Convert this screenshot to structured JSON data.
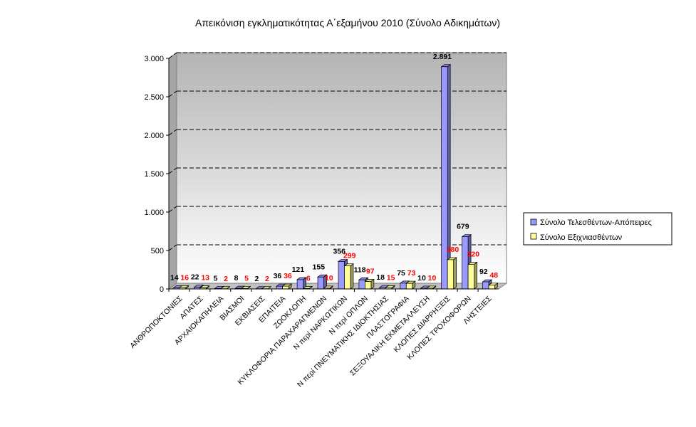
{
  "chart_data": {
    "type": "bar",
    "title": "Απεικόνιση εγκληματικότητας Α΄εξαμήνου 2010 (Σύνολο Αδικημάτων)",
    "categories": [
      "ΑΝΘΡΩΠΟΚΤΟΝΙΕΣ",
      "ΑΠΑΤΕΣ",
      "ΑΡΧΑΙΟΚΑΠΗΛΕΙΑ",
      "ΒΙΑΣΜΟΙ",
      "ΕΚΒΙΑΣΕΙΣ",
      "ΕΠΑΙΤΕΙΑ",
      "ΖΩΟΚΛΟΠΗ",
      "ΚΥΚΛΟΦΟΡΙΑ ΠΑΡΑΧΑΡΑΓΜΕΝΩΝ",
      "Ν περί ΝΑΡΚΩΤΙΚΩΝ",
      "Ν περί ΟΠΛΩΝ",
      "Ν περί ΠΝΕΥΜΑΤΙΚΗΣ ΙΔΙΟΚΤΗΣΙΑΣ",
      "ΠΛΑΣΤΟΓΡΑΦΙΑ",
      "ΣΕΞΟΥΑΛΙΚΗ ΕΚΜΕΤΑΛΛΕΥΣΗ",
      "ΚΛΟΠΕΣ ΔΙΑΡΡΗΞΕΙΣ",
      "ΚΛΟΠΕΣ ΤΡΟΧΟΦΟΡΩΝ",
      "ΛΗΣΤΕΙΕΣ"
    ],
    "series": [
      {
        "name": "Σύνολο Τελεσθέντων-Απόπειρες",
        "color": "#9999ff",
        "values": [
          14,
          22,
          5,
          8,
          2,
          36,
          121,
          155,
          356,
          118,
          18,
          75,
          10,
          2891,
          679,
          92
        ],
        "labels": [
          "14",
          "22",
          "5",
          "8",
          "2",
          "36",
          "121",
          "155",
          "356",
          "118",
          "18",
          "75",
          "10",
          "2.891",
          "679",
          "92"
        ]
      },
      {
        "name": "Σύνολο Εξιχνιασθέντων",
        "color": "#ffff99",
        "values": [
          16,
          13,
          2,
          5,
          2,
          36,
          6,
          10,
          299,
          97,
          15,
          73,
          10,
          380,
          320,
          48
        ],
        "labels": [
          "16",
          "13",
          "2",
          "5",
          "2",
          "36",
          "6",
          "10",
          "299",
          "97",
          "15",
          "73",
          "10",
          "380",
          "320",
          "48"
        ]
      }
    ],
    "yticks": [
      0,
      500,
      1000,
      1500,
      2000,
      2500,
      3000
    ],
    "ytick_labels": [
      "0",
      "500",
      "1.000",
      "1.500",
      "2.000",
      "2.500",
      "3.000"
    ],
    "ylim": [
      0,
      3000
    ],
    "xlabel": "",
    "ylabel": "",
    "grid": true,
    "legend_position": "right",
    "style": "3d-clustered-column",
    "colors": {
      "wall_top": "#b4b4b4",
      "wall_bottom": "#ffffff",
      "gridline": "#000000",
      "value_label_series2": "#ff0000"
    }
  }
}
